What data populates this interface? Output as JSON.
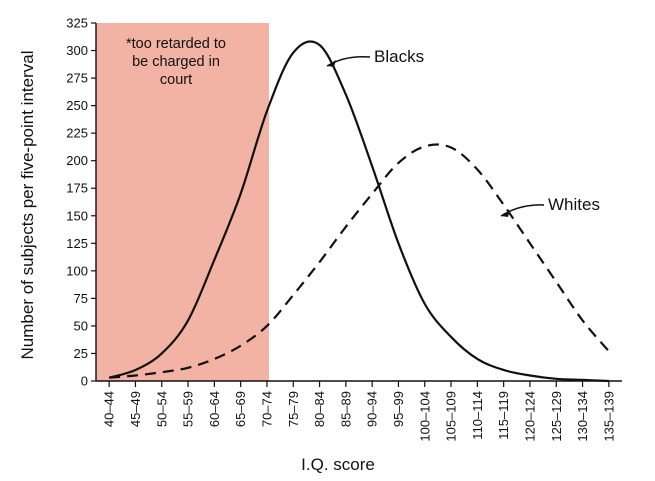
{
  "chart_data": {
    "type": "line",
    "title": "",
    "xlabel": "I.Q. score",
    "ylabel": "Number of subjects per five-point interval",
    "ylim": [
      0,
      325
    ],
    "y_ticks": [
      0,
      25,
      50,
      75,
      100,
      125,
      150,
      175,
      200,
      225,
      250,
      275,
      300,
      325
    ],
    "categories": [
      "40–44",
      "45–49",
      "50–54",
      "55–59",
      "60–64",
      "65–69",
      "70–74",
      "75–79",
      "80–84",
      "85–89",
      "90–94",
      "95–99",
      "100–104",
      "105–109",
      "110–114",
      "115–119",
      "120–124",
      "125–129",
      "130–134",
      "135–139"
    ],
    "series": [
      {
        "name": "Blacks",
        "line_style": "solid",
        "values": [
          3,
          10,
          25,
          55,
          110,
          170,
          245,
          298,
          305,
          260,
          195,
          125,
          70,
          40,
          20,
          10,
          5,
          2,
          1,
          0
        ]
      },
      {
        "name": "Whites",
        "line_style": "dashed",
        "values": [
          3,
          5,
          8,
          12,
          20,
          32,
          50,
          78,
          108,
          140,
          170,
          198,
          213,
          212,
          192,
          160,
          125,
          90,
          55,
          27
        ]
      }
    ],
    "highlight_region": {
      "from_category": "40–44",
      "to_category": "70–74",
      "color": "#f2b3a5",
      "label": "*too retarded to be charged in court"
    },
    "annotation_lines": [
      "*too retarded to",
      "be charged in",
      "court"
    ],
    "colors": {
      "line": "#111111",
      "highlight": "#f2b3a5"
    }
  }
}
